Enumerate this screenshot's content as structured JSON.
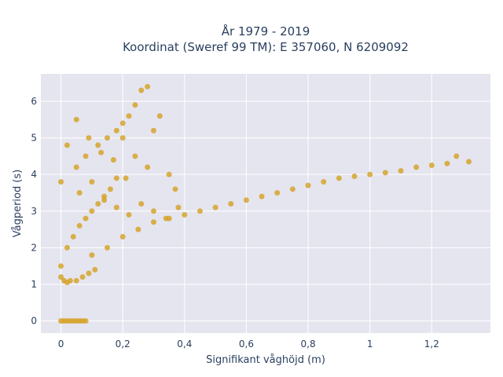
{
  "chart_data": {
    "type": "scatter",
    "title_line1": "År 1979 - 2019",
    "title_line2": "Koordinat (Sweref 99 TM): E 357060, N 6209092",
    "xlabel": "Signifikant våghöjd (m)",
    "ylabel": "Vågperiod (s)",
    "xlim": [
      -0.065,
      1.39
    ],
    "ylim": [
      -0.33,
      6.75
    ],
    "x_ticks": [
      0,
      0.2,
      0.4,
      0.6,
      0.8,
      1,
      1.2
    ],
    "x_tick_labels": [
      "0",
      "0,2",
      "0,4",
      "0,6",
      "0,8",
      "1",
      "1,2"
    ],
    "y_ticks": [
      0,
      1,
      2,
      3,
      4,
      5,
      6
    ],
    "y_tick_labels": [
      "0",
      "1",
      "2",
      "3",
      "4",
      "5",
      "6"
    ],
    "grid": true,
    "colors": {
      "marker": "#d4a020",
      "plot_bg": "#e5e5ef",
      "grid": "#ffffff",
      "text": "#2a3f5f"
    },
    "series": [
      {
        "x": [
          0.0,
          0.01,
          0.02,
          0.03,
          0.04,
          0.05,
          0.06,
          0.07,
          0.08,
          0.0,
          0.0,
          0.01,
          0.02,
          0.03,
          0.05,
          0.07,
          0.09,
          0.11,
          0.02,
          0.04,
          0.06,
          0.08,
          0.1,
          0.12,
          0.14,
          0.16,
          0.18,
          0.05,
          0.08,
          0.12,
          0.15,
          0.18,
          0.2,
          0.22,
          0.24,
          0.26,
          0.28,
          0.1,
          0.15,
          0.2,
          0.25,
          0.3,
          0.35,
          0.4,
          0.45,
          0.5,
          0.55,
          0.6,
          0.65,
          0.7,
          0.75,
          0.8,
          0.85,
          0.9,
          0.95,
          1.0,
          1.05,
          1.1,
          1.15,
          1.2,
          1.25,
          1.28,
          1.32,
          0.06,
          0.1,
          0.14,
          0.18,
          0.22,
          0.26,
          0.3,
          0.34,
          0.38,
          0.2,
          0.24,
          0.28,
          0.3,
          0.32,
          0.35,
          0.37,
          0.0,
          0.02,
          0.05,
          0.09,
          0.13,
          0.17,
          0.21
        ],
        "y": [
          0.0,
          0.0,
          0.0,
          0.0,
          0.0,
          0.0,
          0.0,
          0.0,
          0.0,
          1.2,
          1.5,
          1.1,
          1.05,
          1.1,
          1.1,
          1.2,
          1.3,
          1.4,
          2.0,
          2.3,
          2.6,
          2.8,
          3.0,
          3.2,
          3.4,
          3.6,
          3.9,
          4.2,
          4.5,
          4.8,
          5.0,
          5.2,
          5.4,
          5.6,
          5.9,
          6.3,
          6.4,
          1.8,
          2.0,
          2.3,
          2.5,
          2.7,
          2.8,
          2.9,
          3.0,
          3.1,
          3.2,
          3.3,
          3.4,
          3.5,
          3.6,
          3.7,
          3.8,
          3.9,
          3.95,
          4.0,
          4.05,
          4.1,
          4.2,
          4.25,
          4.3,
          4.5,
          4.35,
          3.5,
          3.8,
          3.3,
          3.1,
          2.9,
          3.2,
          3.0,
          2.8,
          3.1,
          5.0,
          4.5,
          4.2,
          5.2,
          5.6,
          4.0,
          3.6,
          3.8,
          4.8,
          5.5,
          5.0,
          4.6,
          4.4,
          3.9
        ]
      }
    ]
  }
}
